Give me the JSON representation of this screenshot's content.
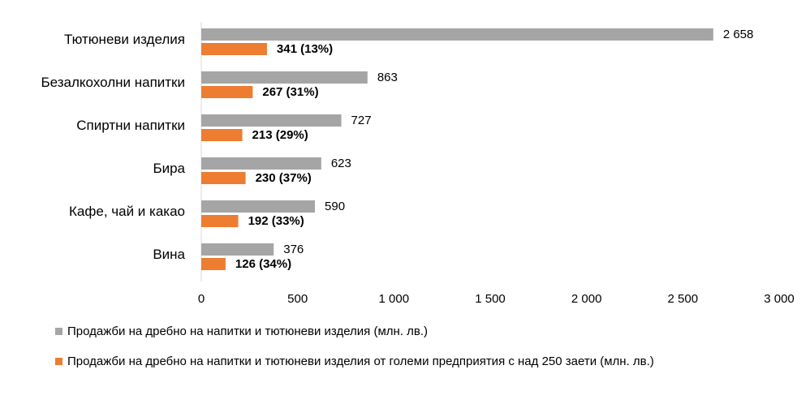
{
  "chart_data": {
    "type": "bar",
    "orientation": "horizontal",
    "categories": [
      "Тютюневи изделия",
      "Безалкохолни напитки",
      "Спиртни напитки",
      "Бира",
      "Кафе, чай и какао",
      "Вина"
    ],
    "series": [
      {
        "name": "Продажби на дребно на напитки и тютюневи изделия (млн. лв.)",
        "color": "#a5a5a5",
        "values": [
          2658,
          863,
          727,
          623,
          590,
          376
        ],
        "labels": [
          "2 658",
          "863",
          "727",
          "623",
          "590",
          "376"
        ]
      },
      {
        "name": "Продажби на дребно на напитки и тютюневи изделия от големи предприятия с над 250 заети (млн. лв.)",
        "color": "#ed7d31",
        "values": [
          341,
          267,
          213,
          230,
          192,
          126
        ],
        "labels": [
          "341 (13%)",
          "267 (31%)",
          "213 (29%)",
          "230 (37%)",
          "192 (33%)",
          "126 (34%)"
        ]
      }
    ],
    "xlim": [
      0,
      3000
    ],
    "xticks": [
      0,
      500,
      1000,
      1500,
      2000,
      2500,
      3000
    ],
    "xtick_labels": [
      "0",
      "500",
      "1 000",
      "1 500",
      "2 000",
      "2 500",
      "3 000"
    ],
    "grid": false,
    "legend_position": "bottom"
  }
}
